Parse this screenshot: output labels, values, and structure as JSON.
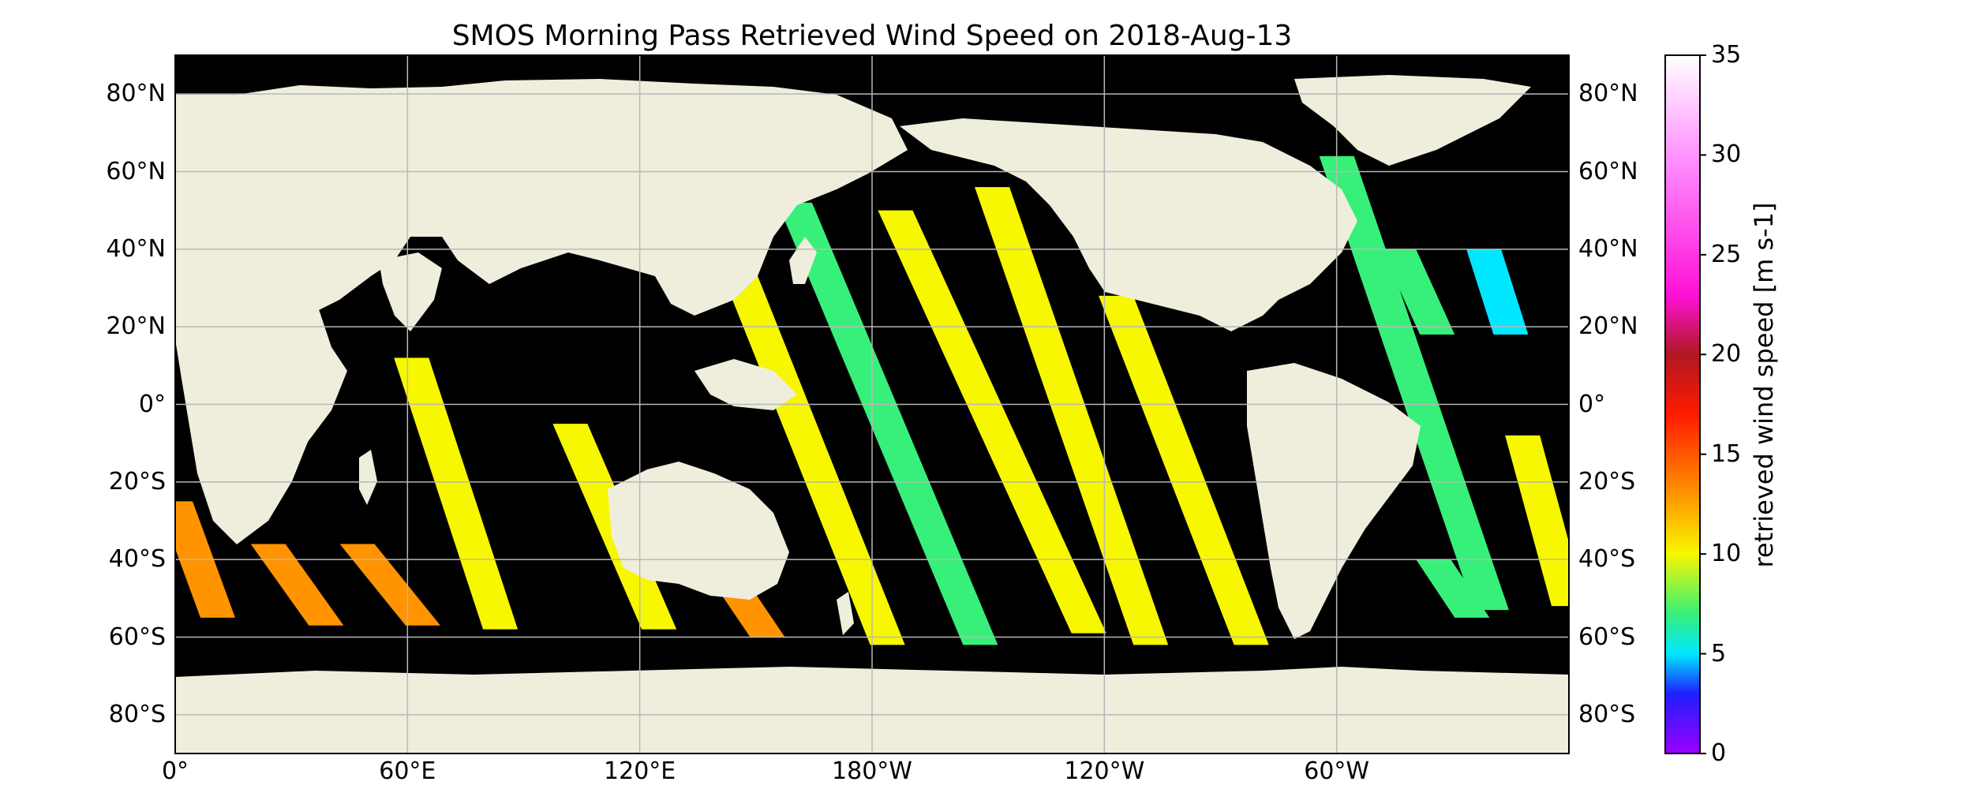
{
  "figure": {
    "title": "SMOS Morning Pass Retrieved Wind Speed on 2018-Aug-13"
  },
  "map": {
    "projection": "plate-carree",
    "lon_range": [
      0,
      360
    ],
    "lat_range": [
      -90,
      90
    ],
    "ocean_no_data_color": "#000000",
    "land_color": "#efeedd",
    "gridlines": true,
    "grid_color": "#b8b8b8"
  },
  "axes": {
    "lat_ticks": [
      {
        "value": 80,
        "label": "80°N"
      },
      {
        "value": 60,
        "label": "60°N"
      },
      {
        "value": 40,
        "label": "40°N"
      },
      {
        "value": 20,
        "label": "20°N"
      },
      {
        "value": 0,
        "label": "0°"
      },
      {
        "value": -20,
        "label": "20°S"
      },
      {
        "value": -40,
        "label": "40°S"
      },
      {
        "value": -60,
        "label": "60°S"
      },
      {
        "value": -80,
        "label": "80°S"
      }
    ],
    "lon_ticks": [
      {
        "value": 0,
        "label": "0°"
      },
      {
        "value": 60,
        "label": "60°E"
      },
      {
        "value": 120,
        "label": "120°E"
      },
      {
        "value": 180,
        "label": "180°W"
      },
      {
        "value": 240,
        "label": "120°W"
      },
      {
        "value": 300,
        "label": "60°W"
      }
    ]
  },
  "colorbar": {
    "label": "retrieved wind speed [m s-1]",
    "range": [
      0,
      35
    ],
    "ticks": [
      {
        "value": 0,
        "label": "0"
      },
      {
        "value": 5,
        "label": "5"
      },
      {
        "value": 10,
        "label": "10"
      },
      {
        "value": 15,
        "label": "15"
      },
      {
        "value": 20,
        "label": "20"
      },
      {
        "value": 25,
        "label": "25"
      },
      {
        "value": 30,
        "label": "30"
      },
      {
        "value": 35,
        "label": "35"
      }
    ],
    "stops": [
      {
        "value": 0,
        "color": "#9b00ff"
      },
      {
        "value": 3,
        "color": "#1f1fff"
      },
      {
        "value": 5,
        "color": "#00e8ff"
      },
      {
        "value": 7,
        "color": "#37f07a"
      },
      {
        "value": 10,
        "color": "#f7f700"
      },
      {
        "value": 13,
        "color": "#ff9400"
      },
      {
        "value": 17,
        "color": "#ff1a00"
      },
      {
        "value": 20,
        "color": "#b01822"
      },
      {
        "value": 23,
        "color": "#ff10d8"
      },
      {
        "value": 30,
        "color": "#ff94ff"
      },
      {
        "value": 35,
        "color": "#ffffff"
      }
    ]
  },
  "swaths": [
    {
      "from": [
        0,
        -25
      ],
      "to": [
        11,
        -55
      ],
      "mean_speed": 15
    },
    {
      "from": [
        61,
        12
      ],
      "to": [
        84,
        -58
      ],
      "mean_speed": 10
    },
    {
      "from": [
        24,
        -36
      ],
      "to": [
        39,
        -57
      ],
      "mean_speed": 15
    },
    {
      "from": [
        47,
        -36
      ],
      "to": [
        64,
        -57
      ],
      "mean_speed": 14
    },
    {
      "from": [
        102,
        -5
      ],
      "to": [
        125,
        -58
      ],
      "mean_speed": 11
    },
    {
      "from": [
        134,
        -32
      ],
      "to": [
        153,
        -60
      ],
      "mean_speed": 15
    },
    {
      "from": [
        144,
        38
      ],
      "to": [
        184,
        -62
      ],
      "mean_speed": 10
    },
    {
      "from": [
        160,
        52
      ],
      "to": [
        208,
        -62
      ],
      "mean_speed": 7
    },
    {
      "from": [
        186,
        50
      ],
      "to": [
        236,
        -59
      ],
      "mean_speed": 9
    },
    {
      "from": [
        211,
        56
      ],
      "to": [
        252,
        -62
      ],
      "mean_speed": 9
    },
    {
      "from": [
        243,
        28
      ],
      "to": [
        278,
        -62
      ],
      "mean_speed": 11
    },
    {
      "from": [
        300,
        64
      ],
      "to": [
        340,
        -53
      ],
      "mean_speed": 8
    },
    {
      "from": [
        316,
        40
      ],
      "to": [
        326,
        18
      ],
      "mean_speed": 7
    },
    {
      "from": [
        338,
        40
      ],
      "to": [
        345,
        18
      ],
      "mean_speed": 6
    },
    {
      "from": [
        348,
        -8
      ],
      "to": [
        360,
        -52
      ],
      "mean_speed": 9
    },
    {
      "from": [
        325,
        -40
      ],
      "to": [
        335,
        -55
      ],
      "mean_speed": 8
    }
  ]
}
